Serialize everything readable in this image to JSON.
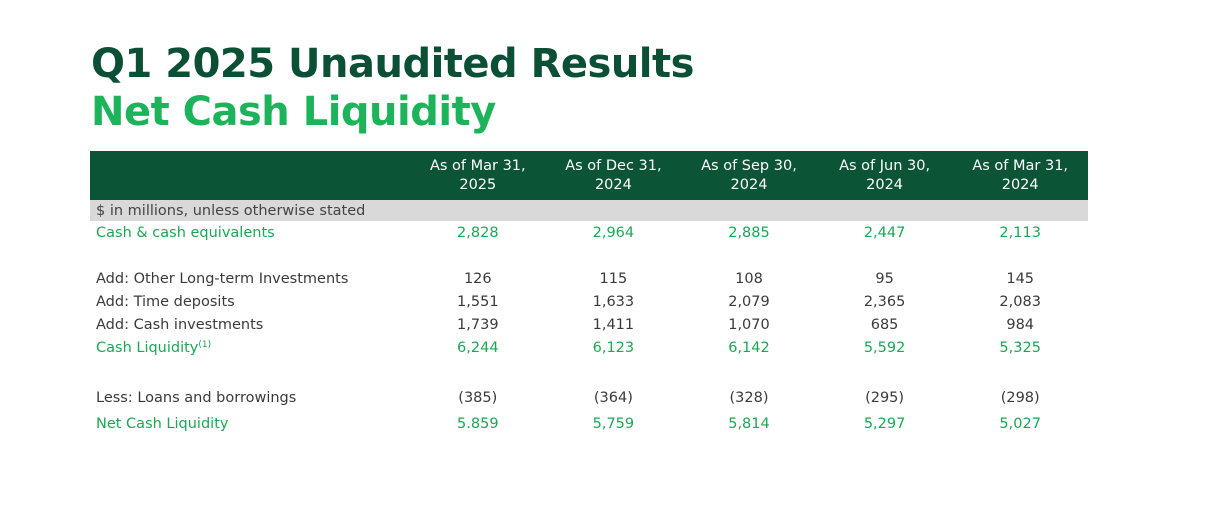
{
  "title": {
    "line1": "Q1 2025 Unaudited Results",
    "line2": "Net Cash Liquidity"
  },
  "table": {
    "columns": [
      {
        "line1": "As of Mar 31,",
        "line2": "2025"
      },
      {
        "line1": "As of Dec 31,",
        "line2": "2024"
      },
      {
        "line1": "As of Sep 30,",
        "line2": "2024"
      },
      {
        "line1": "As of Jun 30,",
        "line2": "2024"
      },
      {
        "line1": "As of Mar 31,",
        "line2": "2024"
      }
    ],
    "unit_note": "$ in millions, unless otherwise stated",
    "rows": {
      "cash_equivalents": {
        "label": "Cash & cash equivalents",
        "values": [
          "2,828",
          "2,964",
          "2,885",
          "2,447",
          "2,113"
        ]
      },
      "other_lt_investments": {
        "label": "Add: Other Long-term Investments",
        "values": [
          "126",
          "115",
          "108",
          "95",
          "145"
        ]
      },
      "time_deposits": {
        "label": "Add: Time deposits",
        "values": [
          "1,551",
          "1,633",
          "2,079",
          "2,365",
          "2,083"
        ]
      },
      "cash_investments": {
        "label": "Add: Cash investments",
        "values": [
          "1,739",
          "1,411",
          "1,070",
          "685",
          "984"
        ]
      },
      "cash_liquidity": {
        "label": "Cash Liquidity",
        "footnote": "(1)",
        "values": [
          "6,244",
          "6,123",
          "6,142",
          "5,592",
          "5,325"
        ]
      },
      "loans": {
        "label": "Less: Loans and borrowings",
        "values": [
          "(385)",
          "(364)",
          "(328)",
          "(295)",
          "(298)"
        ]
      },
      "net_cash_liquidity": {
        "label": "Net Cash Liquidity",
        "values": [
          "5.859",
          "5,759",
          "5,814",
          "5,297",
          "5,027"
        ]
      }
    }
  },
  "colors": {
    "dark_green": "#0b4f34",
    "header_green": "#0b5436",
    "bright_green": "#1db35a",
    "unit_band_gray": "#d9d9d9"
  }
}
